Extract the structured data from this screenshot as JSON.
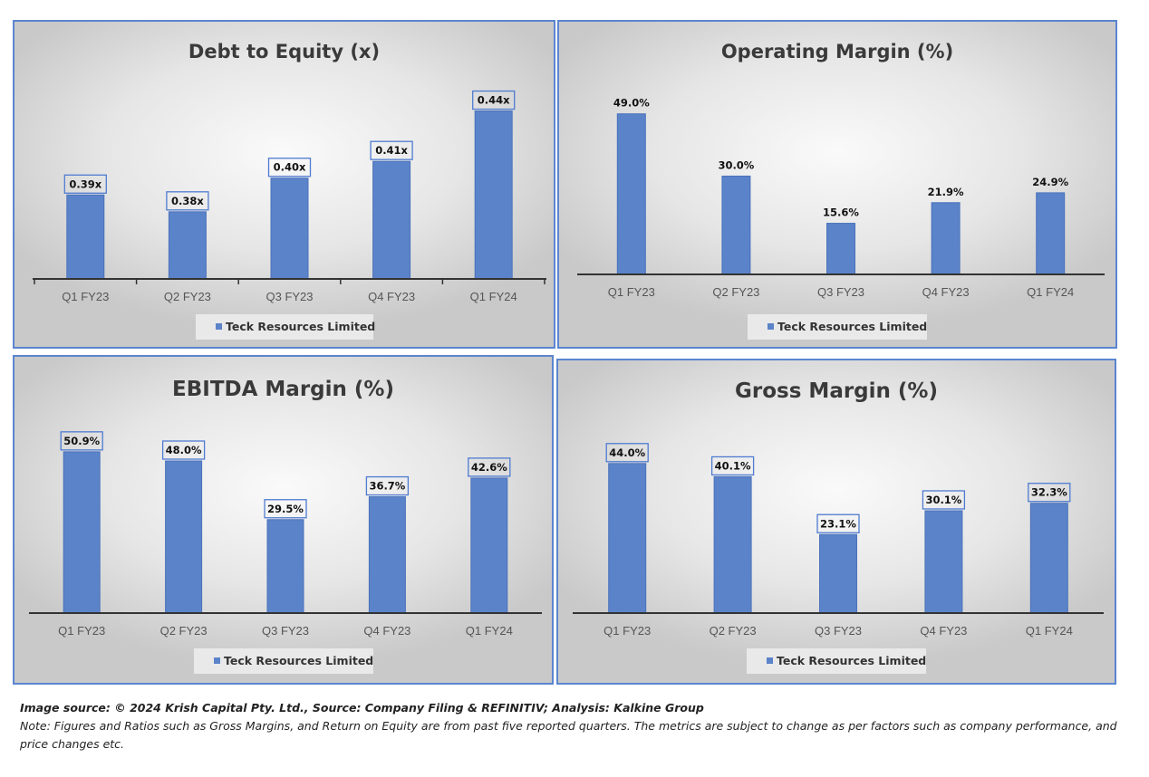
{
  "chart_data": [
    {
      "type": "bar",
      "title": "Debt to Equity (x)",
      "categories": [
        "Q1 FY23",
        "Q2 FY23",
        "Q3 FY23",
        "Q4 FY23",
        "Q1 FY24"
      ],
      "series": [
        {
          "name": "Teck Resources Limited",
          "values": [
            0.39,
            0.38,
            0.4,
            0.41,
            0.44
          ]
        }
      ],
      "data_labels": [
        "0.39x",
        "0.38x",
        "0.40x",
        "0.41x",
        "0.44x"
      ],
      "labels_boxed": true,
      "ylim": [
        0.34,
        0.45
      ],
      "xlabel": "",
      "ylabel": "",
      "legend": "bottom",
      "grid": false
    },
    {
      "type": "bar",
      "title": "Operating Margin (%)",
      "categories": [
        "Q1 FY23",
        "Q2 FY23",
        "Q3 FY23",
        "Q4 FY23",
        "Q1 FY24"
      ],
      "series": [
        {
          "name": "Teck Resources Limited",
          "values": [
            49.0,
            30.0,
            15.6,
            21.9,
            24.9
          ]
        }
      ],
      "data_labels": [
        "49.0%",
        "30.0%",
        "15.6%",
        "21.9%",
        "24.9%"
      ],
      "labels_boxed": false,
      "ylim": [
        0,
        55
      ],
      "xlabel": "",
      "ylabel": "",
      "legend": "bottom",
      "grid": false
    },
    {
      "type": "bar",
      "title": "EBITDA Margin (%)",
      "categories": [
        "Q1 FY23",
        "Q2 FY23",
        "Q3 FY23",
        "Q4 FY23",
        "Q1 FY24"
      ],
      "series": [
        {
          "name": "Teck Resources Limited",
          "values": [
            50.9,
            48.0,
            29.5,
            36.7,
            42.6
          ]
        }
      ],
      "data_labels": [
        "50.9%",
        "48.0%",
        "29.5%",
        "36.7%",
        "42.6%"
      ],
      "labels_boxed": true,
      "ylim": [
        0,
        58
      ],
      "xlabel": "",
      "ylabel": "",
      "legend": "bottom",
      "grid": false
    },
    {
      "type": "bar",
      "title": "Gross Margin (%)",
      "categories": [
        "Q1 FY23",
        "Q2 FY23",
        "Q3 FY23",
        "Q4 FY23",
        "Q1 FY24"
      ],
      "series": [
        {
          "name": "Teck Resources Limited",
          "values": [
            44.0,
            40.1,
            23.1,
            30.1,
            32.3
          ]
        }
      ],
      "data_labels": [
        "44.0%",
        "40.1%",
        "23.1%",
        "30.1%",
        "32.3%"
      ],
      "labels_boxed": true,
      "ylim": [
        0,
        53
      ],
      "xlabel": "",
      "ylabel": "",
      "legend": "bottom",
      "grid": false
    }
  ],
  "colors": {
    "bar": "#5b83c9",
    "bar_edge": "#4a72bb",
    "panel_border": "#5b85d0",
    "label_box_border": "#4f7bd0",
    "axis": "#333333",
    "legend_bg": "#e9e9e9"
  },
  "footer": {
    "source": "Image source: © 2024 Krish Capital Pty. Ltd., Source: Company Filing & REFINITIV; Analysis: Kalkine Group",
    "note": "Note: Figures and Ratios such as  Gross Margins, and Return on Equity are from past  five reported  quarters. The metrics are subject to change as per factors such as company performance, and price changes etc."
  }
}
